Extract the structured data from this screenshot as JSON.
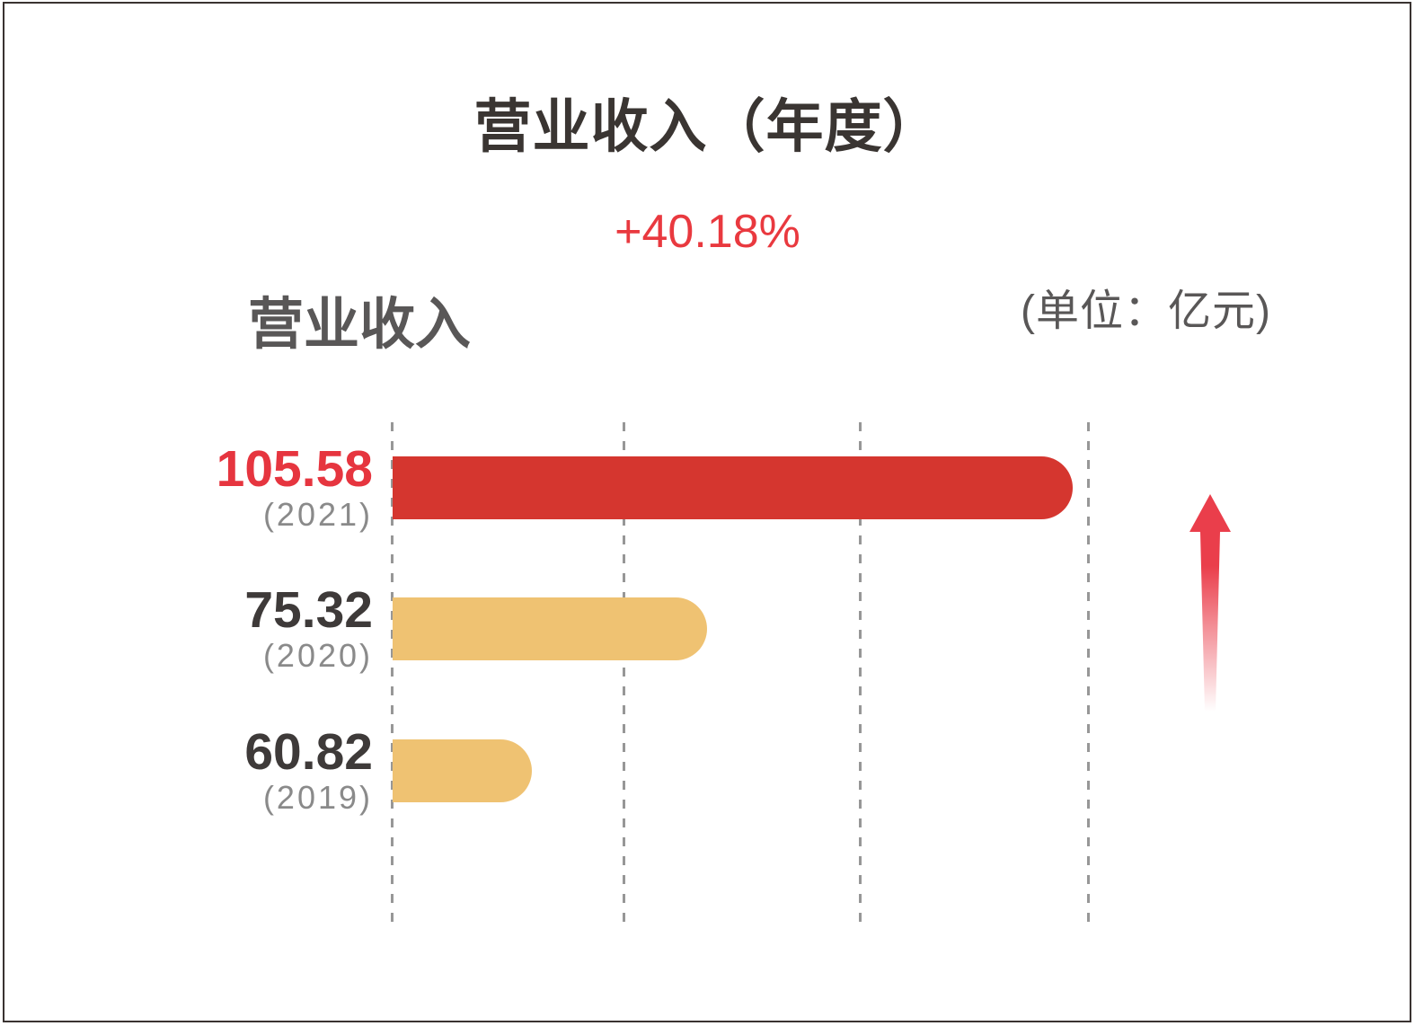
{
  "header": {
    "title": "营业收入（年度）",
    "growth_label": "+40.18%",
    "series_label": "营业收入",
    "unit_label": "(单位：亿元)"
  },
  "chart_data": {
    "type": "bar",
    "orientation": "horizontal",
    "title": "营业收入（年度）",
    "annotation": "+40.18%",
    "series_name": "营业收入",
    "unit": "亿元",
    "unit_label": "(单位：亿元)",
    "categories": [
      "2021",
      "2020",
      "2019"
    ],
    "category_labels": [
      "(2021)",
      "(2020)",
      "(2019)"
    ],
    "values": [
      105.58,
      75.32,
      60.82
    ],
    "value_labels": [
      "105.58",
      "75.32",
      "60.82"
    ],
    "bar_colors": [
      "#d5362f",
      "#efc272",
      "#efc272"
    ],
    "value_text_colors": [
      "#e6353f",
      "#3e3a39",
      "#3e3a39"
    ],
    "xlim": [
      49.3,
      106.9
    ],
    "gridlines": {
      "count": 4,
      "style": "dashed-vertical",
      "color": "#979797"
    },
    "legend_position": "none",
    "trend_arrow": "up"
  },
  "colors": {
    "bar_red": "#d5362f",
    "bar_gold": "#efc272",
    "accent_red_text": "#e6353f",
    "growth_red": "#e9393f",
    "arrow_red": "#ea3e4b",
    "title_dark": "#3a3532",
    "subtitle_gray": "#595757",
    "year_gray": "#8a8a8a",
    "gridline_gray": "#979797",
    "border_dark": "#3a3331"
  }
}
